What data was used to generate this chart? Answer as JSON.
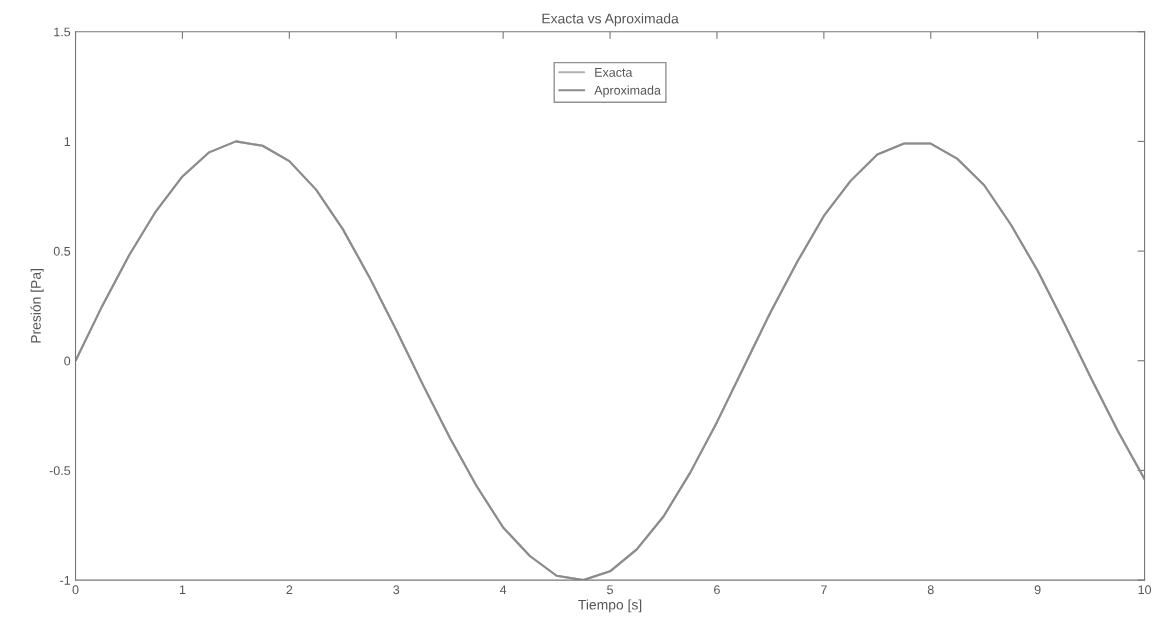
{
  "chart_data": {
    "type": "line",
    "title": "Exacta vs Aproximada",
    "xlabel": "Tiempo [s]",
    "ylabel": "Presión [Pa]",
    "x": [
      0,
      0.25,
      0.5,
      0.75,
      1,
      1.25,
      1.5,
      1.75,
      2,
      2.25,
      2.5,
      2.75,
      3,
      3.25,
      3.5,
      3.75,
      4,
      4.25,
      4.5,
      4.75,
      5,
      5.25,
      5.5,
      5.75,
      6,
      6.25,
      6.5,
      6.75,
      7,
      7.25,
      7.5,
      7.75,
      8,
      8.25,
      8.5,
      8.75,
      9,
      9.25,
      9.5,
      9.75,
      10
    ],
    "series": [
      {
        "name": "Exacta",
        "color": "#b0b0b0",
        "values": [
          0,
          0.25,
          0.48,
          0.68,
          0.84,
          0.95,
          1.0,
          0.98,
          0.91,
          0.78,
          0.6,
          0.38,
          0.14,
          -0.11,
          -0.35,
          -0.57,
          -0.76,
          -0.89,
          -0.98,
          -1.0,
          -0.96,
          -0.86,
          -0.71,
          -0.51,
          -0.28,
          -0.03,
          0.22,
          0.45,
          0.66,
          0.82,
          0.94,
          0.99,
          0.99,
          0.92,
          0.8,
          0.62,
          0.41,
          0.17,
          -0.08,
          -0.32,
          -0.54
        ]
      },
      {
        "name": "Aproximada",
        "color": "#8c8c8c",
        "values": [
          0,
          0.25,
          0.48,
          0.68,
          0.84,
          0.95,
          1.0,
          0.98,
          0.91,
          0.78,
          0.6,
          0.38,
          0.14,
          -0.11,
          -0.35,
          -0.57,
          -0.76,
          -0.89,
          -0.98,
          -1.0,
          -0.96,
          -0.86,
          -0.71,
          -0.51,
          -0.28,
          -0.03,
          0.22,
          0.45,
          0.66,
          0.82,
          0.94,
          0.99,
          0.99,
          0.92,
          0.8,
          0.62,
          0.41,
          0.17,
          -0.08,
          -0.32,
          -0.54
        ]
      }
    ],
    "xlim": [
      0,
      10
    ],
    "xticks": [
      0,
      1,
      2,
      3,
      4,
      5,
      6,
      7,
      8,
      9,
      10
    ],
    "ylim": [
      -1,
      1.5
    ],
    "yticks": [
      -1,
      -0.5,
      0,
      0.5,
      1,
      1.5
    ],
    "grid": false,
    "legend": "top",
    "line_style": "solid"
  }
}
